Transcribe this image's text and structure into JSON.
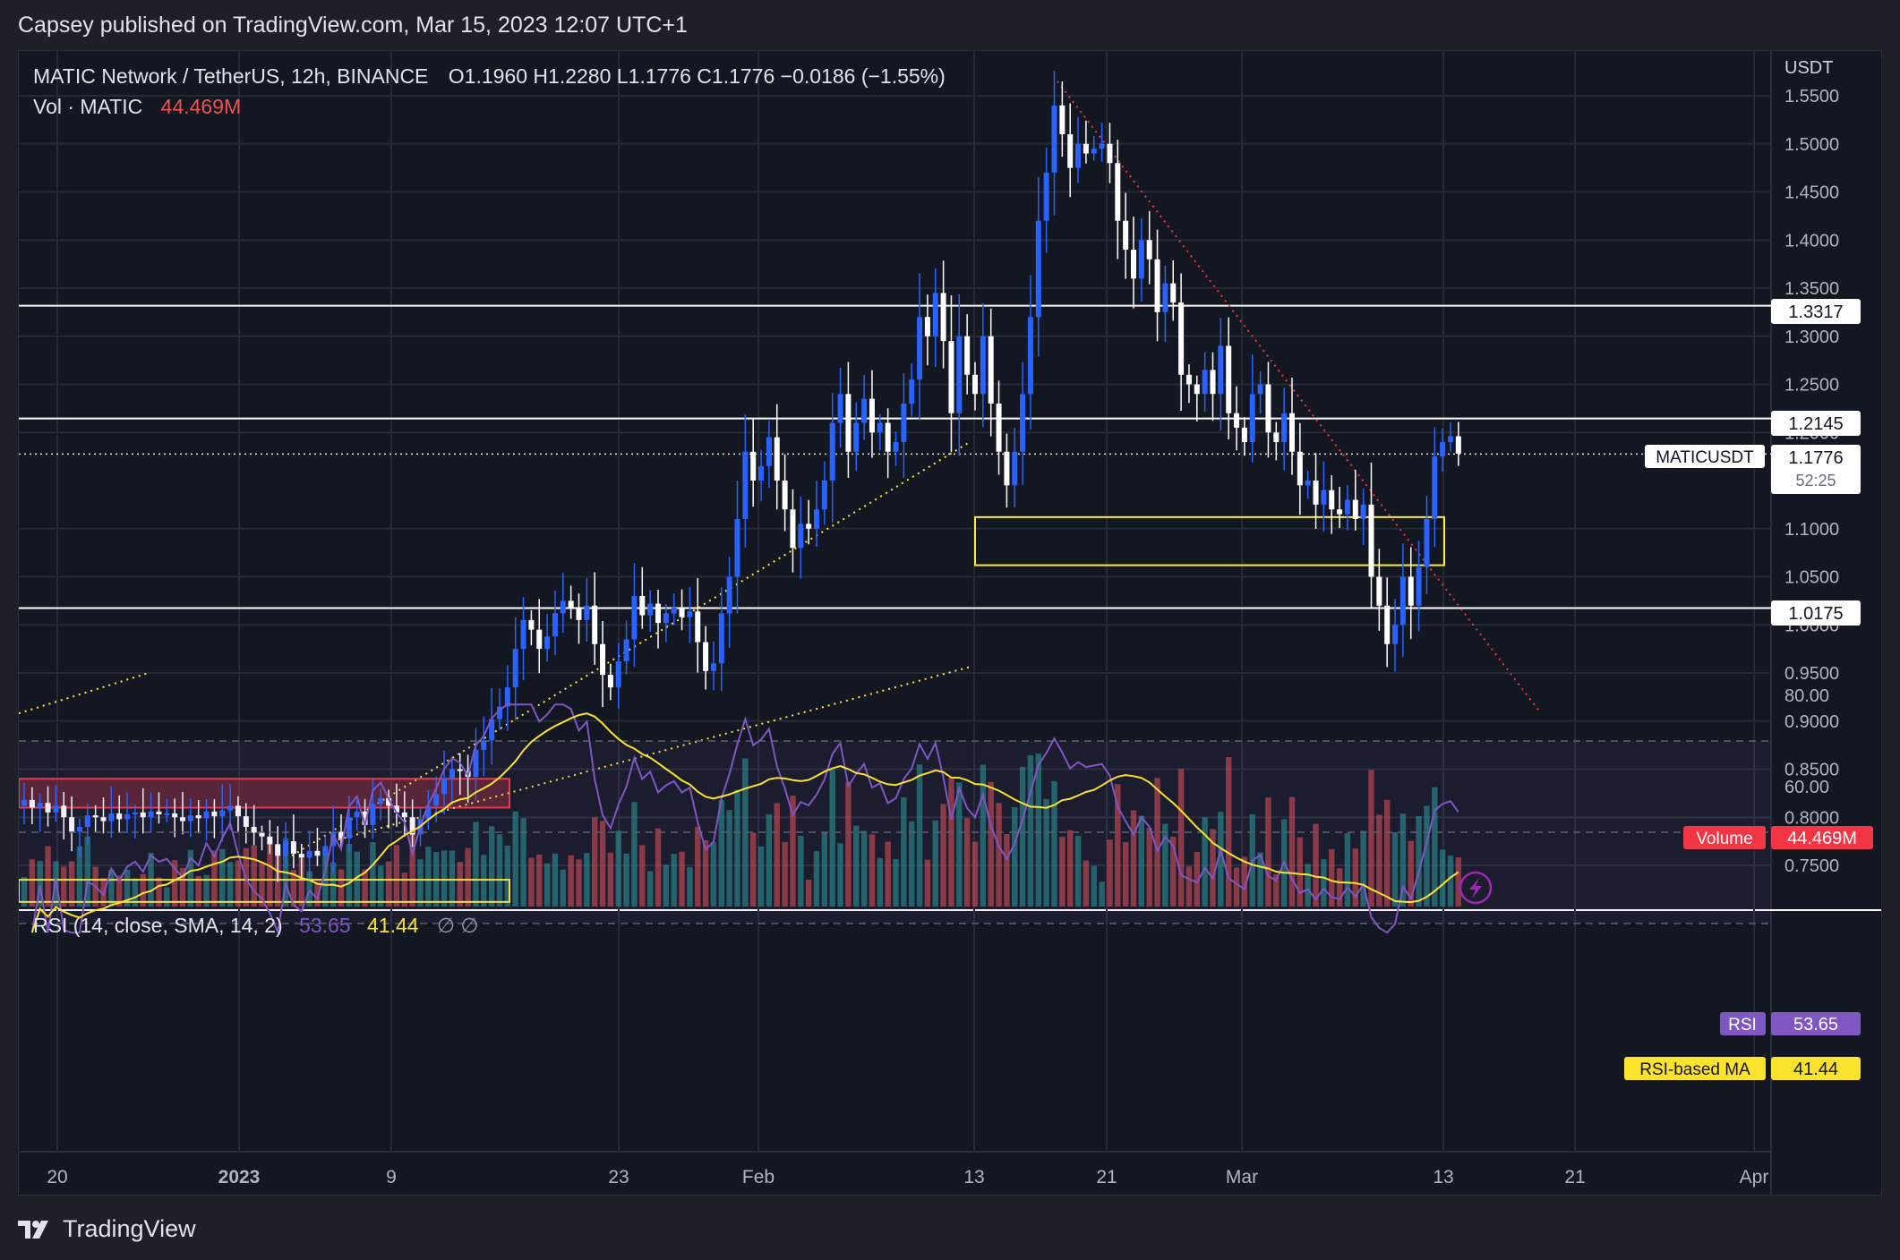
{
  "header": {
    "published": "Capsey published on TradingView.com, Mar 15, 2023 12:07 UTC+1"
  },
  "legend": {
    "symbol": "MATIC Network / TetherUS, 12h, BINANCE",
    "ohlc": "O1.1960   H1.2280   L1.1776   C1.1776   −0.0186 (−1.55%)",
    "vol_label": "Vol · MATIC",
    "vol_value": "44.469M",
    "rsi_label": "RSI (14, close, SMA, 14, 2)",
    "rsi_value": "53.65",
    "rsi_ma_value": "41.44",
    "rsi_icons": "∅  ∅"
  },
  "price_axis": {
    "unit": "USDT",
    "ticks": [
      "1.5500",
      "1.5000",
      "1.4500",
      "1.4000",
      "1.3500",
      "1.3000",
      "1.2500",
      "1.2000",
      "1.1000",
      "1.0500",
      "1.0000",
      "0.9500",
      "0.9000",
      "0.8500",
      "0.8000",
      "0.7500"
    ]
  },
  "rsi_axis": {
    "ticks": [
      "80.00",
      "60.00"
    ]
  },
  "time_axis": {
    "ticks": [
      "20",
      "2023",
      "9",
      "23",
      "Feb",
      "13",
      "21",
      "Mar",
      "13",
      "21",
      "Apr"
    ]
  },
  "labels": {
    "level_1": "1.3317",
    "level_2": "1.2145",
    "level_3": "1.0175",
    "symbol_tag": "MATICUSDT",
    "last_price": "1.1776",
    "countdown": "52:25",
    "volume_tag": "Volume",
    "volume_value": "44.469M",
    "rsi_tag": "RSI",
    "rsi_value": "53.65",
    "rsi_ma_tag": "RSI-based MA",
    "rsi_ma_value": "41.44"
  },
  "footer": {
    "brand": "TradingView"
  },
  "colors": {
    "up": "#2962ff",
    "down": "#ffffff",
    "vol_up": "#26a69a",
    "vol_down": "#ef5350",
    "rsi": "#7e57c2",
    "rsi_ma": "#fbe32d",
    "level": "#ffffff",
    "zone": "#ffeb3b",
    "supply": "#f23645"
  },
  "chart_data": {
    "type": "candlestick",
    "pair": "MATIC Network / TetherUS",
    "exchange": "BINANCE",
    "timeframe": "12h",
    "ylim": [
      0.72,
      1.59
    ],
    "closes": [
      0.818,
      0.81,
      0.815,
      0.805,
      0.812,
      0.8,
      0.785,
      0.79,
      0.802,
      0.8,
      0.796,
      0.804,
      0.798,
      0.803,
      0.805,
      0.8,
      0.806,
      0.803,
      0.804,
      0.8,
      0.796,
      0.802,
      0.799,
      0.806,
      0.801,
      0.807,
      0.812,
      0.801,
      0.79,
      0.784,
      0.78,
      0.772,
      0.76,
      0.775,
      0.762,
      0.758,
      0.765,
      0.76,
      0.77,
      0.785,
      0.778,
      0.8,
      0.806,
      0.792,
      0.814,
      0.82,
      0.812,
      0.805,
      0.8,
      0.782,
      0.798,
      0.812,
      0.824,
      0.84,
      0.85,
      0.848,
      0.842,
      0.87,
      0.88,
      0.902,
      0.915,
      0.935,
      0.975,
      1.005,
      0.995,
      0.975,
      0.988,
      1.012,
      1.025,
      1.018,
      1.005,
      1.02,
      0.98,
      0.948,
      0.935,
      0.962,
      0.985,
      1.03,
      1.01,
      1.022,
      1.002,
      1.012,
      1.018,
      1.008,
      1.014,
      0.982,
      0.952,
      0.96,
      1.012,
      1.05,
      1.11,
      1.18,
      1.15,
      1.165,
      1.195,
      1.15,
      1.12,
      1.08,
      1.105,
      1.1,
      1.12,
      1.15,
      1.21,
      1.24,
      1.18,
      1.21,
      1.235,
      1.2,
      1.21,
      1.18,
      1.19,
      1.23,
      1.255,
      1.32,
      1.3,
      1.345,
      1.295,
      1.22,
      1.3,
      1.26,
      1.24,
      1.3,
      1.23,
      1.18,
      1.145,
      1.18,
      1.24,
      1.32,
      1.42,
      1.47,
      1.54,
      1.51,
      1.475,
      1.5,
      1.49,
      1.495,
      1.5,
      1.48,
      1.42,
      1.39,
      1.36,
      1.4,
      1.38,
      1.325,
      1.355,
      1.335,
      1.26,
      1.25,
      1.24,
      1.265,
      1.24,
      1.29,
      1.22,
      1.205,
      1.19,
      1.24,
      1.25,
      1.2,
      1.19,
      1.22,
      1.18,
      1.145,
      1.15,
      1.125,
      1.14,
      1.12,
      1.115,
      1.13,
      1.11,
      1.125,
      1.05,
      1.02,
      0.98,
      1.0,
      1.05,
      1.02,
      1.06,
      1.11,
      1.175,
      1.19,
      1.196,
      1.178
    ]
  }
}
